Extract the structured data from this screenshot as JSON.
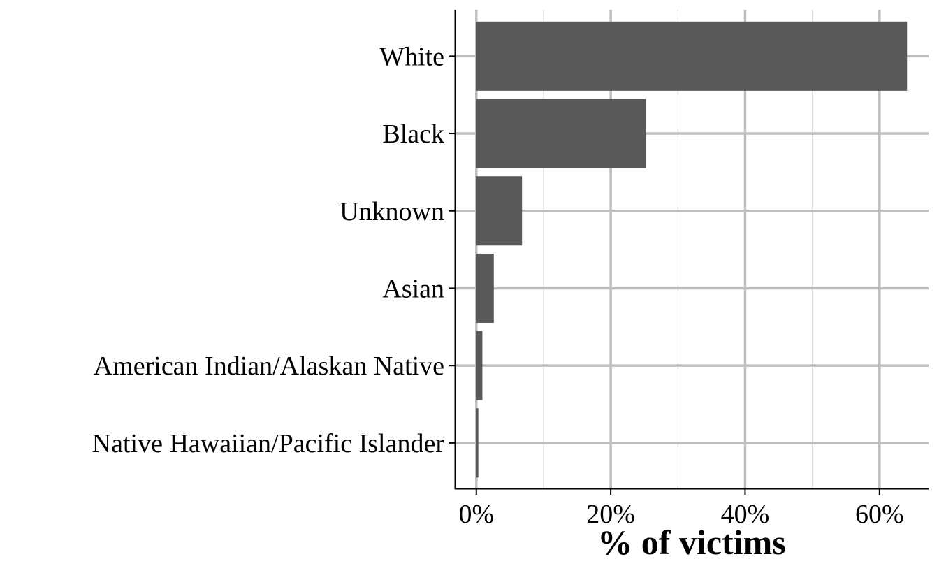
{
  "chart_data": {
    "type": "bar",
    "orientation": "horizontal",
    "categories": [
      "White",
      "Black",
      "Unknown",
      "Asian",
      "American Indian/Alaskan Native",
      "Native Hawaiian/Pacific Islander"
    ],
    "values": [
      64.1,
      25.2,
      6.8,
      2.6,
      0.9,
      0.3
    ],
    "xlabel": "% of victims",
    "ylabel": "",
    "xlim": [
      -3.2,
      67.3
    ],
    "x_ticks": [
      0,
      20,
      40,
      60
    ],
    "x_tick_labels": [
      "0%",
      "20%",
      "40%",
      "60%"
    ],
    "x_minor_ticks": [
      10,
      30,
      50
    ],
    "grid": true,
    "colors": {
      "bar": "#595959",
      "grid_major": "#bebebe",
      "grid_minor": "#d9d9d9",
      "axis": "#000000"
    }
  }
}
